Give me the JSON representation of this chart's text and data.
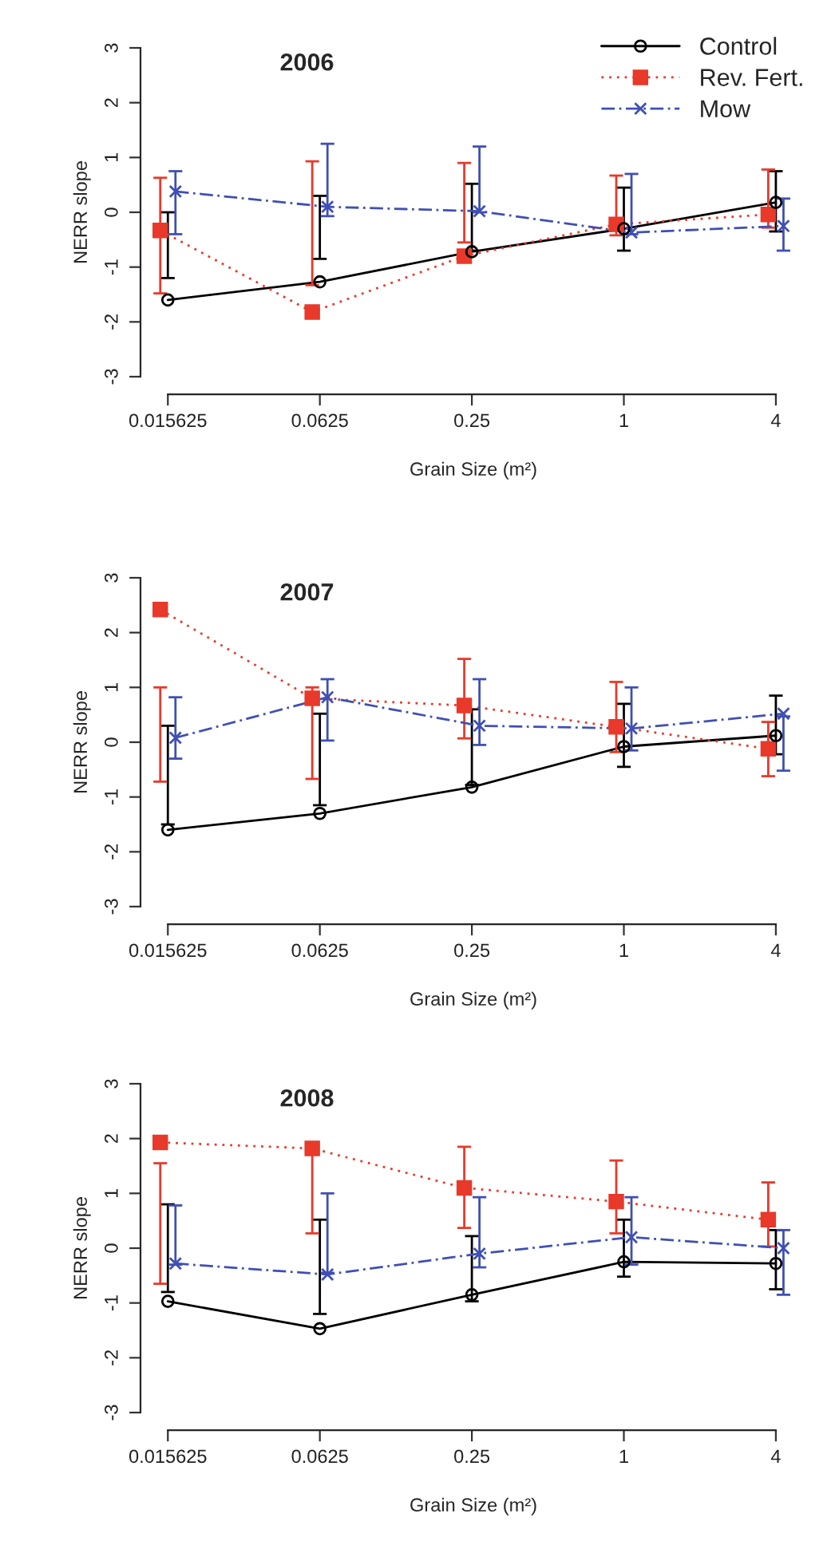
{
  "chart_data": [
    {
      "type": "line",
      "title": "2006",
      "xlabel": "Grain Size (m²)",
      "ylabel": "NERR slope",
      "categories": [
        "0.015625",
        "0.0625",
        "0.25",
        "1",
        "4"
      ],
      "ylim": [
        -3,
        3
      ],
      "yticks": [
        -3,
        -2,
        -1,
        0,
        1,
        2,
        3
      ],
      "legend": "top right",
      "grid": false,
      "series": [
        {
          "name": "Control",
          "color": "#000000",
          "marker": "circle",
          "line_style": "solid",
          "values": [
            -1.6,
            -1.27,
            -0.72,
            -0.3,
            0.18
          ],
          "errors": [
            [
              -1.2,
              0.0
            ],
            [
              -0.85,
              0.3
            ],
            [
              -0.7,
              0.52
            ],
            [
              -0.7,
              0.45
            ],
            [
              -0.35,
              0.75
            ]
          ]
        },
        {
          "name": "Rev. Fert.",
          "color": "#e8392a",
          "marker": "square",
          "line_style": "dotted",
          "values": [
            -0.33,
            -1.82,
            -0.8,
            -0.22,
            -0.04
          ],
          "errors": [
            [
              -1.48,
              0.63
            ],
            [
              -1.33,
              0.93
            ],
            [
              -0.55,
              0.9
            ],
            [
              -0.42,
              0.67
            ],
            [
              -0.28,
              0.78
            ]
          ]
        },
        {
          "name": "Mow",
          "color": "#3f4fb5",
          "marker": "cross",
          "line_style": "dashed",
          "values": [
            0.38,
            0.1,
            0.02,
            -0.37,
            -0.25
          ],
          "errors": [
            [
              -0.4,
              0.75
            ],
            [
              -0.07,
              1.25
            ],
            [
              0.0,
              1.2
            ],
            [
              -0.4,
              0.7
            ],
            [
              -0.7,
              0.25
            ]
          ]
        }
      ]
    },
    {
      "type": "line",
      "title": "2007",
      "xlabel": "Grain Size (m²)",
      "ylabel": "NERR slope",
      "categories": [
        "0.015625",
        "0.0625",
        "0.25",
        "1",
        "4"
      ],
      "ylim": [
        -3,
        3
      ],
      "yticks": [
        -3,
        -2,
        -1,
        0,
        1,
        2,
        3
      ],
      "grid": false,
      "series": [
        {
          "color": "#000000",
          "marker": "circle",
          "line_style": "solid",
          "values": [
            -1.6,
            -1.3,
            -0.82,
            -0.08,
            0.12
          ],
          "errors": [
            [
              -1.5,
              0.3
            ],
            [
              -1.15,
              0.52
            ],
            [
              -0.78,
              0.6
            ],
            [
              -0.45,
              0.7
            ],
            [
              -0.22,
              0.85
            ]
          ]
        },
        {
          "color": "#e8392a",
          "marker": "square",
          "line_style": "dotted",
          "values": [
            2.42,
            0.8,
            0.67,
            0.28,
            -0.12
          ],
          "errors": [
            [
              -0.72,
              1.0
            ],
            [
              -0.67,
              1.0
            ],
            [
              0.07,
              1.52
            ],
            [
              -0.18,
              1.1
            ],
            [
              -0.62,
              0.37
            ]
          ]
        },
        {
          "color": "#3f4fb5",
          "marker": "cross",
          "line_style": "dashed",
          "values": [
            0.08,
            0.82,
            0.3,
            0.25,
            0.52
          ],
          "errors": [
            [
              -0.3,
              0.82
            ],
            [
              0.03,
              1.15
            ],
            [
              -0.05,
              1.15
            ],
            [
              -0.15,
              1.0
            ],
            [
              -0.52,
              0.47
            ]
          ]
        }
      ]
    },
    {
      "type": "line",
      "title": "2008",
      "xlabel": "Grain Size (m²)",
      "ylabel": "NERR slope",
      "categories": [
        "0.015625",
        "0.0625",
        "0.25",
        "1",
        "4"
      ],
      "ylim": [
        -3,
        3
      ],
      "yticks": [
        -3,
        -2,
        -1,
        0,
        1,
        2,
        3
      ],
      "grid": false,
      "series": [
        {
          "color": "#000000",
          "marker": "circle",
          "line_style": "solid",
          "values": [
            -0.97,
            -1.47,
            -0.85,
            -0.25,
            -0.28
          ],
          "errors": [
            [
              -0.8,
              0.8
            ],
            [
              -1.2,
              0.52
            ],
            [
              -0.97,
              0.22
            ],
            [
              -0.52,
              0.52
            ],
            [
              -0.75,
              0.33
            ]
          ]
        },
        {
          "color": "#e8392a",
          "marker": "square",
          "line_style": "dotted",
          "values": [
            1.93,
            1.82,
            1.1,
            0.85,
            0.52
          ],
          "errors": [
            [
              -0.65,
              1.55
            ],
            [
              0.27,
              1.82
            ],
            [
              0.37,
              1.85
            ],
            [
              0.27,
              1.6
            ],
            [
              0.03,
              1.2
            ]
          ]
        },
        {
          "color": "#3f4fb5",
          "marker": "cross",
          "line_style": "dashed",
          "values": [
            -0.28,
            -0.48,
            -0.1,
            0.2,
            0.0
          ],
          "errors": [
            [
              -0.3,
              0.78
            ],
            [
              -0.45,
              1.0
            ],
            [
              -0.35,
              0.93
            ],
            [
              -0.3,
              0.93
            ],
            [
              -0.85,
              0.33
            ]
          ]
        }
      ]
    }
  ]
}
